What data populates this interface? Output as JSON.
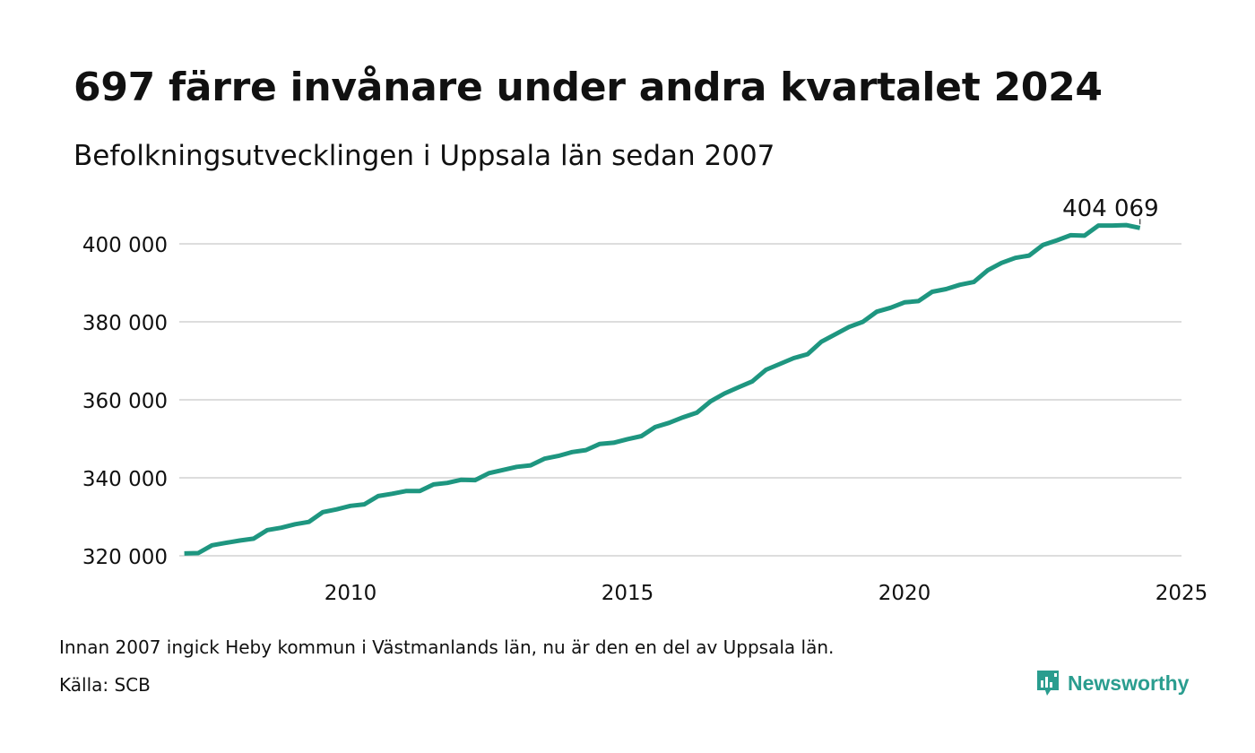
{
  "title": "697 färre invånare under andra kvartalet 2024",
  "subtitle": "Befolkningsutvecklingen i Uppsala län sedan 2007",
  "note": "Innan 2007 ingick Heby kommun i Västmanlands län, nu är den en del av Uppsala län.",
  "source": "Källa: SCB",
  "brand": {
    "name": "Newsworthy",
    "icon": "newsworthy-logo-icon",
    "color": "#2a9d8f"
  },
  "chart_data": {
    "type": "line",
    "title": "",
    "xlabel": "",
    "ylabel": "",
    "xlim": [
      2007,
      2025
    ],
    "ylim": [
      316000,
      406000
    ],
    "x_ticks": [
      2010,
      2015,
      2020,
      2025
    ],
    "x_tick_labels": [
      "2010",
      "2015",
      "2020",
      "2025"
    ],
    "y_ticks": [
      320000,
      340000,
      360000,
      380000,
      400000
    ],
    "y_tick_labels": [
      "320 000",
      "340 000",
      "360 000",
      "380 000",
      "400 000"
    ],
    "grid": "horizontal",
    "line_color": "#1e9680",
    "end_label": "404 069",
    "series": [
      {
        "x": [
          2007.0,
          2007.25,
          2007.5,
          2007.75,
          2008.0,
          2008.25,
          2008.5,
          2008.75,
          2009.0,
          2009.25,
          2009.5,
          2009.75,
          2010.0,
          2010.25,
          2010.5,
          2010.75,
          2011.0,
          2011.25,
          2011.5,
          2011.75,
          2012.0,
          2012.25,
          2012.5,
          2012.75,
          2013.0,
          2013.25,
          2013.5,
          2013.75,
          2014.0,
          2014.25,
          2014.5,
          2014.75,
          2015.0,
          2015.25,
          2015.5,
          2015.75,
          2016.0,
          2016.25,
          2016.5,
          2016.75,
          2017.0,
          2017.25,
          2017.5,
          2017.75,
          2018.0,
          2018.25,
          2018.5,
          2018.75,
          2019.0,
          2019.25,
          2019.5,
          2019.75,
          2020.0,
          2020.25,
          2020.5,
          2020.75,
          2021.0,
          2021.25,
          2021.5,
          2021.75,
          2022.0,
          2022.25,
          2022.5,
          2022.75,
          2023.0,
          2023.25,
          2023.5,
          2023.75,
          2024.0,
          2024.25
        ],
        "values": [
          320600,
          320700,
          322700,
          323300,
          323900,
          324400,
          326600,
          327200,
          328100,
          328700,
          331200,
          331900,
          332800,
          333200,
          335300,
          335900,
          336600,
          336600,
          338300,
          338700,
          339500,
          339400,
          341200,
          342000,
          342800,
          343200,
          344900,
          345600,
          346600,
          347100,
          348700,
          349000,
          349900,
          350700,
          353000,
          354100,
          355500,
          356700,
          359600,
          361600,
          363200,
          364700,
          367700,
          369200,
          370700,
          371700,
          374900,
          376800,
          378700,
          380000,
          382600,
          383600,
          385000,
          385300,
          387700,
          388400,
          389500,
          390200,
          393200,
          395100,
          396400,
          397000,
          399700,
          400900,
          402200,
          402100,
          404700,
          404700,
          404800,
          404069
        ]
      }
    ]
  }
}
